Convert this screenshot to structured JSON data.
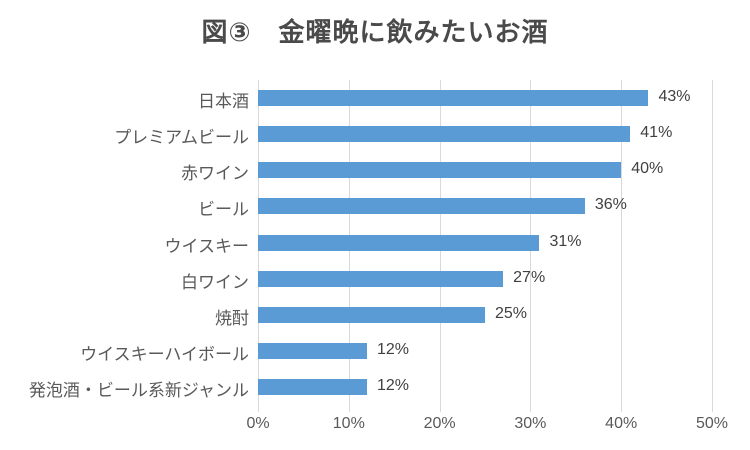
{
  "page": {
    "background_color": "#ffffff"
  },
  "chart_data": {
    "type": "bar",
    "orientation": "horizontal",
    "title": "図③　金曜晩に飲みたいお酒",
    "categories": [
      "日本酒",
      "プレミアムビール",
      "赤ワイン",
      "ビール",
      "ウイスキー",
      "白ワイン",
      "焼酎",
      "ウイスキーハイボール",
      "発泡酒・ビール系新ジャンル"
    ],
    "values": [
      43,
      41,
      40,
      36,
      31,
      27,
      25,
      12,
      12
    ],
    "value_labels": [
      "43%",
      "41%",
      "40%",
      "36%",
      "31%",
      "27%",
      "25%",
      "12%",
      "12%"
    ],
    "xlabel": "",
    "ylabel": "",
    "xlim": [
      0,
      50
    ],
    "x_ticks": [
      "0%",
      "10%",
      "20%",
      "30%",
      "40%",
      "50%"
    ],
    "x_tick_values": [
      0,
      10,
      20,
      30,
      40,
      50
    ],
    "grid": true,
    "legend": false,
    "bar_color": "#5b9bd5",
    "gridline_color": "#d9d9d9",
    "title_color": "#4a4a4a",
    "category_label_color": "#595959",
    "value_label_color": "#404040",
    "tick_label_color": "#595959"
  }
}
